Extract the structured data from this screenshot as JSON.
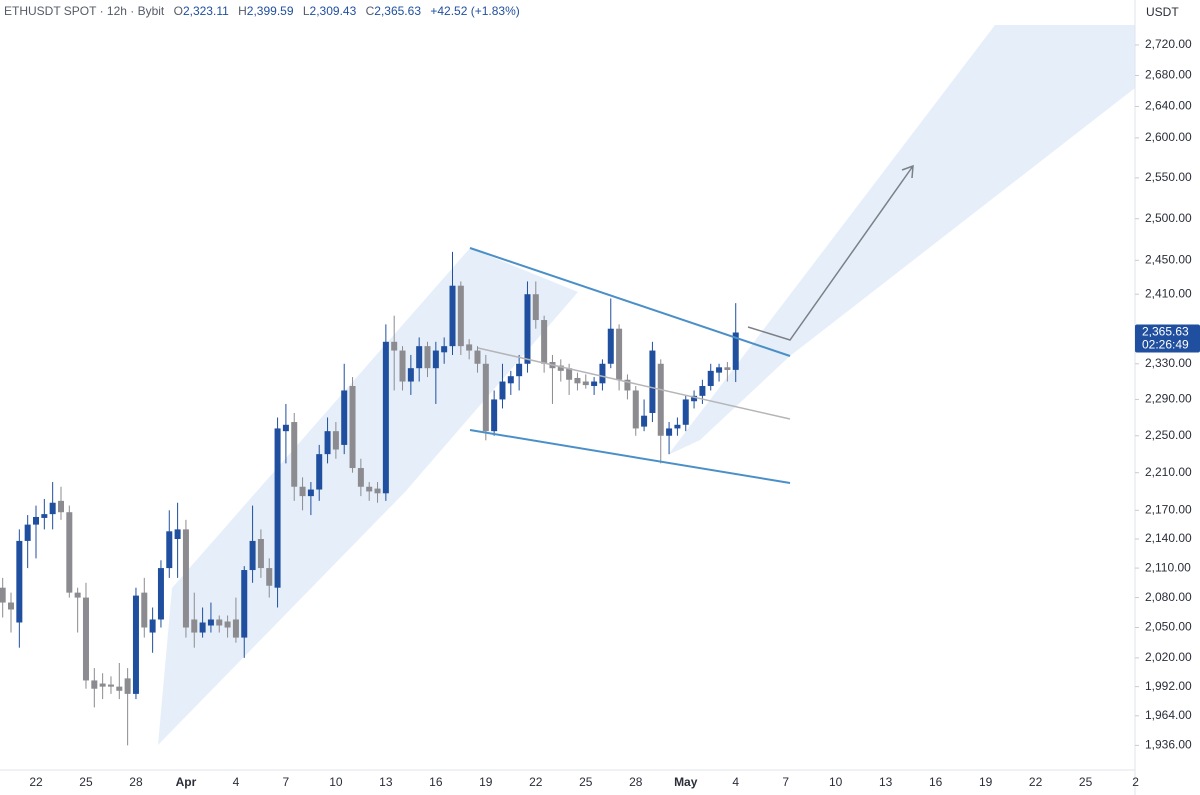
{
  "chart_data": {
    "type": "candlestick",
    "title": "ETHUSDT SPOT · 12h · Bybit",
    "legend_values": [
      {
        "prefix": "O",
        "text": "2,323.11"
      },
      {
        "prefix": "H",
        "text": "2,399.59"
      },
      {
        "prefix": "L",
        "text": "2,309.43"
      },
      {
        "prefix": "C",
        "text": "2,365.63"
      }
    ],
    "change": "+42.52 (+1.83%)",
    "y_axis_unit": "USDT",
    "last_price": {
      "value": 2365.63,
      "label": "2,365.63"
    },
    "countdown": "02:26:49",
    "up_color": "#1f4f9e",
    "down_color": "#8b8b90",
    "log_scale": true,
    "ylim": [
      1913,
      2780
    ],
    "yticks": [
      {
        "value": 1936,
        "label": "1,936.00"
      },
      {
        "value": 1964,
        "label": "1,964.00"
      },
      {
        "value": 1992,
        "label": "1,992.00"
      },
      {
        "value": 2020,
        "label": "2,020.00"
      },
      {
        "value": 2050,
        "label": "2,050.00"
      },
      {
        "value": 2080,
        "label": "2,080.00"
      },
      {
        "value": 2110,
        "label": "2,110.00"
      },
      {
        "value": 2140,
        "label": "2,140.00"
      },
      {
        "value": 2170,
        "label": "2,170.00"
      },
      {
        "value": 2210,
        "label": "2,210.00"
      },
      {
        "value": 2250,
        "label": "2,250.00"
      },
      {
        "value": 2290,
        "label": "2,290.00"
      },
      {
        "value": 2330,
        "label": "2,330.00"
      },
      {
        "value": 2410,
        "label": "2,410.00"
      },
      {
        "value": 2450,
        "label": "2,450.00"
      },
      {
        "value": 2500,
        "label": "2,500.00"
      },
      {
        "value": 2550,
        "label": "2,550.00"
      },
      {
        "value": 2600,
        "label": "2,600.00"
      },
      {
        "value": 2640,
        "label": "2,640.00"
      },
      {
        "value": 2680,
        "label": "2,680.00"
      },
      {
        "value": 2720,
        "label": "2,720.00"
      }
    ],
    "categories": [
      null,
      null,
      null,
      null,
      "22",
      null,
      null,
      null,
      null,
      null,
      "25",
      null,
      null,
      null,
      null,
      null,
      "28",
      null,
      null,
      null,
      null,
      null,
      "Apr",
      null,
      null,
      null,
      null,
      null,
      "4",
      null,
      null,
      null,
      null,
      null,
      "7",
      null,
      null,
      null,
      null,
      null,
      "10",
      null,
      null,
      null,
      null,
      null,
      "13",
      null,
      null,
      null,
      null,
      null,
      "16",
      null,
      null,
      null,
      null,
      null,
      "19",
      null,
      null,
      null,
      null,
      null,
      "22",
      null,
      null,
      null,
      null,
      null,
      "25",
      null,
      null,
      null,
      null,
      null,
      "28",
      null,
      null,
      null,
      null,
      null,
      "May",
      null,
      null,
      null,
      null,
      null,
      "4",
      null,
      null,
      null,
      null,
      null,
      "7",
      null,
      null,
      null,
      null,
      null,
      "10",
      null,
      null,
      null,
      null,
      null,
      "13",
      null,
      null,
      null,
      null,
      null,
      "16",
      null,
      null,
      null,
      null,
      null,
      "19",
      null,
      null,
      null,
      null,
      null,
      "22",
      null,
      null,
      null,
      null,
      null,
      "25",
      null,
      null,
      null,
      null,
      null,
      "2"
    ],
    "open": [
      2090,
      2075,
      2055,
      2138,
      2155,
      2162,
      2166,
      2180,
      2168,
      2085,
      2080,
      1998,
      1995,
      1994,
      1992,
      2000,
      1985,
      2085,
      2045,
      2058,
      2110,
      2140,
      2150,
      2058,
      2045,
      2052,
      2058,
      2056,
      2058,
      2040,
      2108,
      2140,
      2110,
      2090,
      2255,
      2265,
      2195,
      2185,
      2192,
      2230,
      2255,
      2240,
      2305,
      2215,
      2195,
      2193,
      2188,
      2355,
      2345,
      2310,
      2325,
      2350,
      2325,
      2343,
      2350,
      2420,
      2352,
      2345,
      2330,
      2255,
      2290,
      2308,
      2316,
      2330,
      2410,
      2380,
      2332,
      2328,
      2325,
      2314,
      2310,
      2305,
      2308,
      2330,
      2370,
      2312,
      2300,
      2260,
      2275,
      2330,
      2250,
      2258,
      2262,
      2288,
      2294,
      2305,
      2320,
      2326,
      2323.11,
      null,
      null,
      null,
      null,
      null,
      null,
      null,
      null,
      null,
      null,
      null,
      null,
      null,
      null,
      null,
      null,
      null,
      null,
      null,
      null,
      null,
      null,
      null,
      null,
      null,
      null,
      null,
      null,
      null,
      null,
      null,
      null,
      null,
      null,
      null,
      null,
      null,
      null,
      null,
      null,
      null,
      null,
      null,
      null,
      null,
      null,
      null,
      null
    ],
    "high": [
      2100,
      2085,
      2150,
      2165,
      2175,
      2182,
      2200,
      2195,
      2175,
      2090,
      2095,
      2010,
      2005,
      2002,
      2015,
      2010,
      2090,
      2100,
      2070,
      2118,
      2170,
      2178,
      2160,
      2085,
      2070,
      2075,
      2062,
      2062,
      2080,
      2112,
      2175,
      2150,
      2120,
      2270,
      2285,
      2275,
      2205,
      2200,
      2240,
      2270,
      2265,
      2330,
      2315,
      2225,
      2200,
      2200,
      2375,
      2385,
      2350,
      2340,
      2360,
      2355,
      2355,
      2360,
      2460,
      2425,
      2358,
      2350,
      2340,
      2300,
      2330,
      2322,
      2340,
      2425,
      2425,
      2385,
      2340,
      2335,
      2330,
      2320,
      2318,
      2315,
      2335,
      2405,
      2375,
      2318,
      2305,
      2290,
      2355,
      2335,
      2265,
      2270,
      2295,
      2300,
      2312,
      2330,
      2330,
      2332,
      2399.59,
      null,
      null,
      null,
      null,
      null,
      null,
      null,
      null,
      null,
      null,
      null,
      null,
      null,
      null,
      null,
      null,
      null,
      null,
      null,
      null,
      null,
      null,
      null,
      null,
      null,
      null,
      null,
      null,
      null,
      null,
      null,
      null,
      null,
      null,
      null,
      null,
      null,
      null,
      null,
      null,
      null,
      null,
      null,
      null,
      null,
      null,
      null,
      null
    ],
    "low": [
      2060,
      2045,
      2030,
      2110,
      2120,
      2150,
      2150,
      2160,
      2080,
      2045,
      1990,
      1972,
      1980,
      1985,
      1980,
      1936,
      1980,
      2040,
      2025,
      2050,
      2100,
      2100,
      2040,
      2030,
      2040,
      2045,
      2045,
      2040,
      2035,
      2020,
      2095,
      2100,
      2080,
      2070,
      2220,
      2180,
      2170,
      2165,
      2180,
      2220,
      2225,
      2230,
      2210,
      2185,
      2180,
      2178,
      2180,
      2300,
      2300,
      2295,
      2310,
      2315,
      2285,
      2330,
      2340,
      2340,
      2335,
      2320,
      2245,
      2250,
      2280,
      2295,
      2300,
      2320,
      2370,
      2320,
      2285,
      2310,
      2295,
      2300,
      2302,
      2295,
      2300,
      2325,
      2300,
      2290,
      2250,
      2255,
      2265,
      2220,
      2230,
      2250,
      2255,
      2280,
      2285,
      2300,
      2310,
      2310,
      2309.43,
      null,
      null,
      null,
      null,
      null,
      null,
      null,
      null,
      null,
      null,
      null,
      null,
      null,
      null,
      null,
      null,
      null,
      null,
      null,
      null,
      null,
      null,
      null,
      null,
      null,
      null,
      null,
      null,
      null,
      null,
      null,
      null,
      null,
      null,
      null,
      null,
      null,
      null,
      null,
      null,
      null,
      null,
      null,
      null,
      null,
      null,
      null,
      null
    ],
    "close": [
      2075,
      2068,
      2138,
      2155,
      2163,
      2166,
      2178,
      2168,
      2085,
      2080,
      1998,
      1990,
      1992,
      1992,
      1988,
      1985,
      2082,
      2050,
      2058,
      2110,
      2148,
      2150,
      2050,
      2045,
      2055,
      2058,
      2052,
      2050,
      2040,
      2108,
      2138,
      2110,
      2092,
      2258,
      2262,
      2195,
      2185,
      2192,
      2230,
      2255,
      2235,
      2300,
      2215,
      2195,
      2190,
      2188,
      2355,
      2345,
      2310,
      2325,
      2350,
      2325,
      2345,
      2350,
      2420,
      2350,
      2345,
      2330,
      2255,
      2290,
      2310,
      2316,
      2330,
      2410,
      2380,
      2330,
      2325,
      2322,
      2312,
      2308,
      2306,
      2310,
      2330,
      2370,
      2312,
      2300,
      2258,
      2272,
      2345,
      2250,
      2258,
      2262,
      2290,
      2294,
      2305,
      2322,
      2326,
      2323,
      2365.63,
      null,
      null,
      null,
      null,
      null,
      null,
      null,
      null,
      null,
      null,
      null,
      null,
      null,
      null,
      null,
      null,
      null,
      null,
      null,
      null,
      null,
      null,
      null,
      null,
      null,
      null,
      null,
      null,
      null,
      null,
      null,
      null,
      null,
      null,
      null,
      null,
      null,
      null,
      null,
      null,
      null,
      null,
      null,
      null,
      null,
      null,
      null,
      null
    ]
  }
}
